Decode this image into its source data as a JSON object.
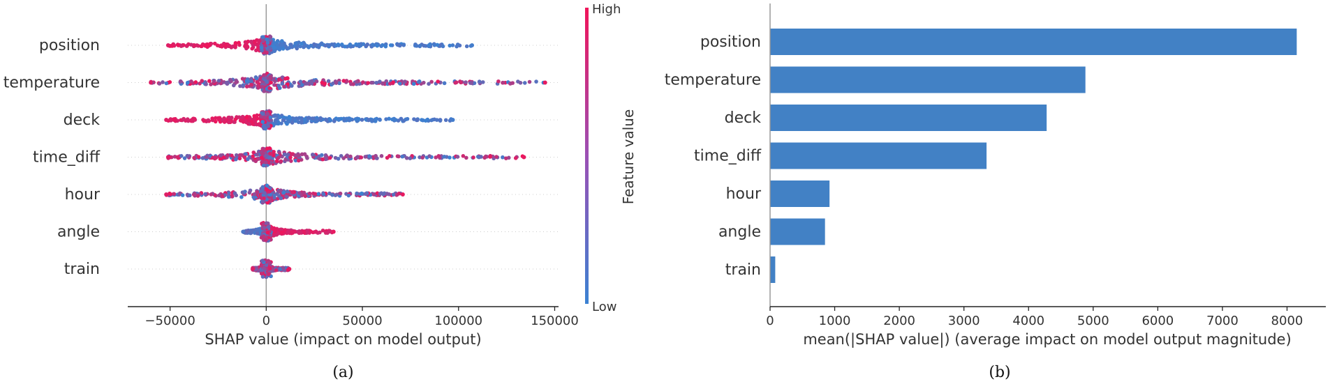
{
  "colors": {
    "low": "#3b82d2",
    "high": "#f0145a",
    "bar": "#4281c5",
    "axis": "#222222",
    "zero": "#999999",
    "grid": "#cccccc"
  },
  "chart_data": [
    {
      "type": "scatter",
      "subtype": "beeswarm",
      "caption": "(a)",
      "features": [
        "position",
        "temperature",
        "deck",
        "time_diff",
        "hour",
        "angle",
        "train"
      ],
      "xlabel": "SHAP value (impact on model output)",
      "xlim": [
        -72000,
        152000
      ],
      "xticks": [
        -50000,
        0,
        50000,
        100000,
        150000
      ],
      "xtick_labels": [
        "−50000",
        "0",
        "50000",
        "100000",
        "150000"
      ],
      "colorbar": {
        "label": "Feature value",
        "high_label": "High",
        "low_label": "Low"
      },
      "ranges": [
        {
          "feature": "position",
          "min": -51000,
          "max": 107000,
          "low_side": "positive"
        },
        {
          "feature": "temperature",
          "min": -60000,
          "max": 145000,
          "low_side": "mixed"
        },
        {
          "feature": "deck",
          "min": -52000,
          "max": 97000,
          "low_side": "positive"
        },
        {
          "feature": "time_diff",
          "min": -51000,
          "max": 134000,
          "low_side": "mixed"
        },
        {
          "feature": "hour",
          "min": -52000,
          "max": 71000,
          "low_side": "mixed"
        },
        {
          "feature": "angle",
          "min": -12000,
          "max": 35000,
          "low_side": "negative"
        },
        {
          "feature": "train",
          "min": -7000,
          "max": 12000,
          "low_side": "mixed"
        }
      ]
    },
    {
      "type": "bar",
      "orientation": "horizontal",
      "caption": "(b)",
      "categories": [
        "position",
        "temperature",
        "deck",
        "time_diff",
        "hour",
        "angle",
        "train"
      ],
      "values": [
        8150,
        4880,
        4280,
        3350,
        920,
        850,
        80
      ],
      "xlabel": "mean(|SHAP value|) (average impact on model output magnitude)",
      "xlim": [
        0,
        8600
      ],
      "xticks": [
        0,
        1000,
        2000,
        3000,
        4000,
        5000,
        6000,
        7000,
        8000
      ],
      "xtick_labels": [
        "0",
        "1000",
        "2000",
        "3000",
        "4000",
        "5000",
        "6000",
        "7000",
        "8000"
      ]
    }
  ]
}
